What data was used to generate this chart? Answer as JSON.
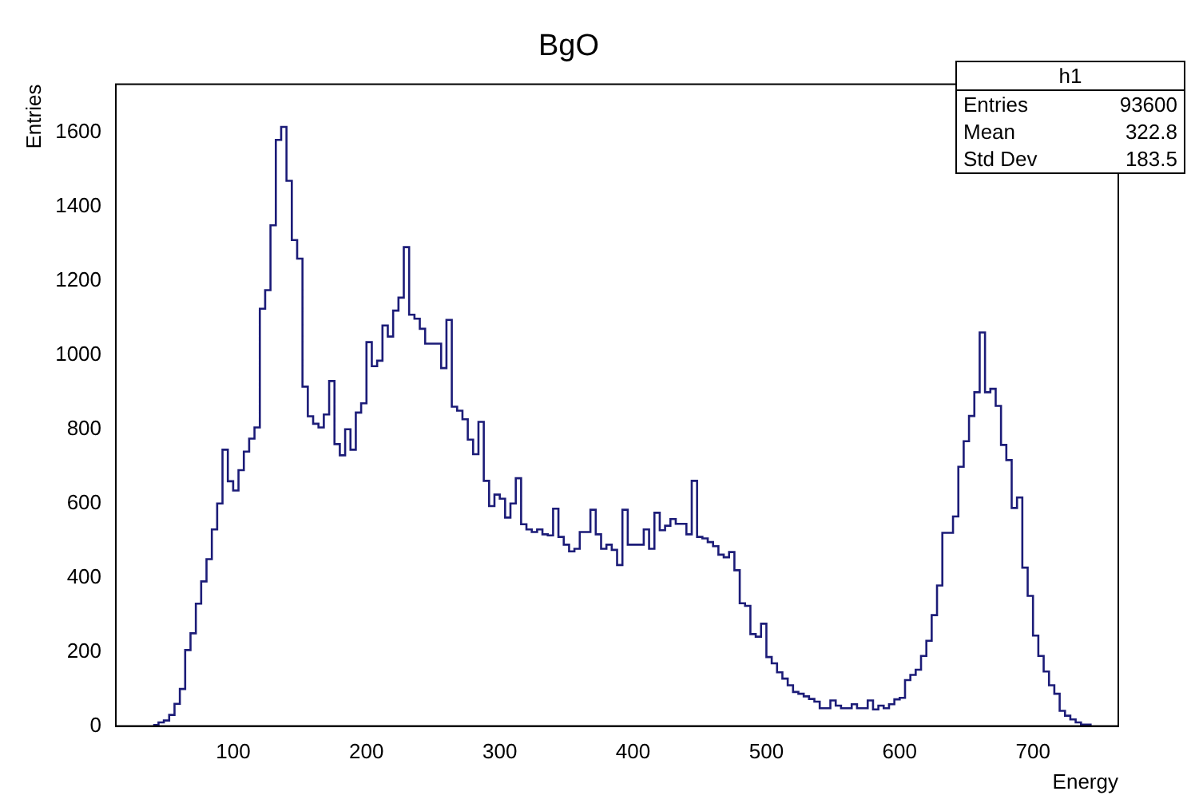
{
  "chart_data": {
    "type": "histogram",
    "title": "BgO",
    "xlabel": "Energy",
    "ylabel": "Entries",
    "color": "#1c1c78",
    "bins": [
      40,
      44,
      48,
      52,
      56,
      60,
      64,
      68,
      72,
      76,
      80,
      84,
      88,
      92,
      96,
      100,
      104,
      108,
      112,
      116,
      120,
      124,
      128,
      132,
      136,
      140,
      144,
      148,
      152,
      156,
      160,
      164,
      168,
      172,
      176,
      180,
      184,
      188,
      192,
      196,
      200,
      204,
      208,
      212,
      216,
      220,
      224,
      228,
      232,
      236,
      240,
      244,
      248,
      252,
      256,
      260,
      264,
      268,
      272,
      276,
      280,
      284,
      288,
      292,
      296,
      300,
      304,
      308,
      312,
      316,
      320,
      324,
      328,
      332,
      336,
      340,
      344,
      348,
      352,
      356,
      360,
      364,
      368,
      372,
      376,
      380,
      384,
      388,
      392,
      396,
      400,
      404,
      408,
      412,
      416,
      420,
      424,
      428,
      432,
      436,
      440,
      444,
      448,
      452,
      456,
      460,
      464,
      468,
      472,
      476,
      480,
      484,
      488,
      492,
      496,
      500,
      504,
      508,
      512,
      516,
      520,
      524,
      528,
      532,
      536,
      540,
      544,
      548,
      552,
      556,
      560,
      564,
      568,
      572,
      576,
      580,
      584,
      588,
      592,
      596,
      600,
      604,
      608,
      612,
      616,
      620,
      624,
      628,
      632,
      636,
      640,
      644,
      648,
      652,
      656,
      660,
      664,
      668,
      672,
      676,
      680,
      684,
      688,
      692,
      696,
      700,
      704,
      708,
      712,
      716,
      720,
      724,
      728,
      732,
      736,
      740,
      744
    ],
    "values": [
      3,
      10,
      15,
      30,
      60,
      100,
      205,
      250,
      330,
      390,
      450,
      530,
      600,
      745,
      660,
      635,
      690,
      740,
      775,
      805,
      1125,
      1175,
      1350,
      1580,
      1615,
      1470,
      1310,
      1260,
      915,
      835,
      815,
      805,
      840,
      930,
      760,
      730,
      800,
      745,
      845,
      870,
      1035,
      970,
      985,
      1080,
      1050,
      1120,
      1155,
      1291,
      1109,
      1098,
      1071,
      1031,
      1031,
      1031,
      965,
      1095,
      861,
      850,
      827,
      772,
      733,
      820,
      661,
      593,
      624,
      613,
      562,
      600,
      668,
      544,
      530,
      523,
      530,
      517,
      514,
      586,
      510,
      489,
      471,
      478,
      523,
      523,
      583,
      517,
      478,
      489,
      475,
      434,
      583,
      489,
      489,
      489,
      530,
      478,
      575,
      528,
      540,
      558,
      545,
      545,
      517,
      661,
      510,
      506,
      496,
      485,
      462,
      455,
      469,
      420,
      331,
      324,
      248,
      241,
      276,
      186,
      169,
      145,
      128,
      110,
      92,
      87,
      80,
      73,
      66,
      48,
      48,
      69,
      55,
      48,
      48,
      59,
      48,
      48,
      69,
      45,
      55,
      48,
      59,
      72,
      76,
      124,
      138,
      152,
      189,
      230,
      299,
      379,
      521,
      521,
      565,
      699,
      768,
      836,
      900,
      1061,
      900,
      909,
      863,
      758,
      717,
      588,
      616,
      427,
      351,
      244,
      189,
      147,
      110,
      87,
      41,
      28,
      18,
      10,
      4,
      4
    ],
    "xlim": [
      12,
      764
    ],
    "xticks": [
      100,
      200,
      300,
      400,
      500,
      600,
      700
    ],
    "ylim": [
      0,
      1730
    ],
    "yticks": [
      0,
      200,
      400,
      600,
      800,
      1000,
      1200,
      1400,
      1600
    ],
    "grid": false,
    "annotations": [
      "h1",
      "Entries 93600",
      "Mean 322.8",
      "Std Dev 183.5"
    ]
  }
}
